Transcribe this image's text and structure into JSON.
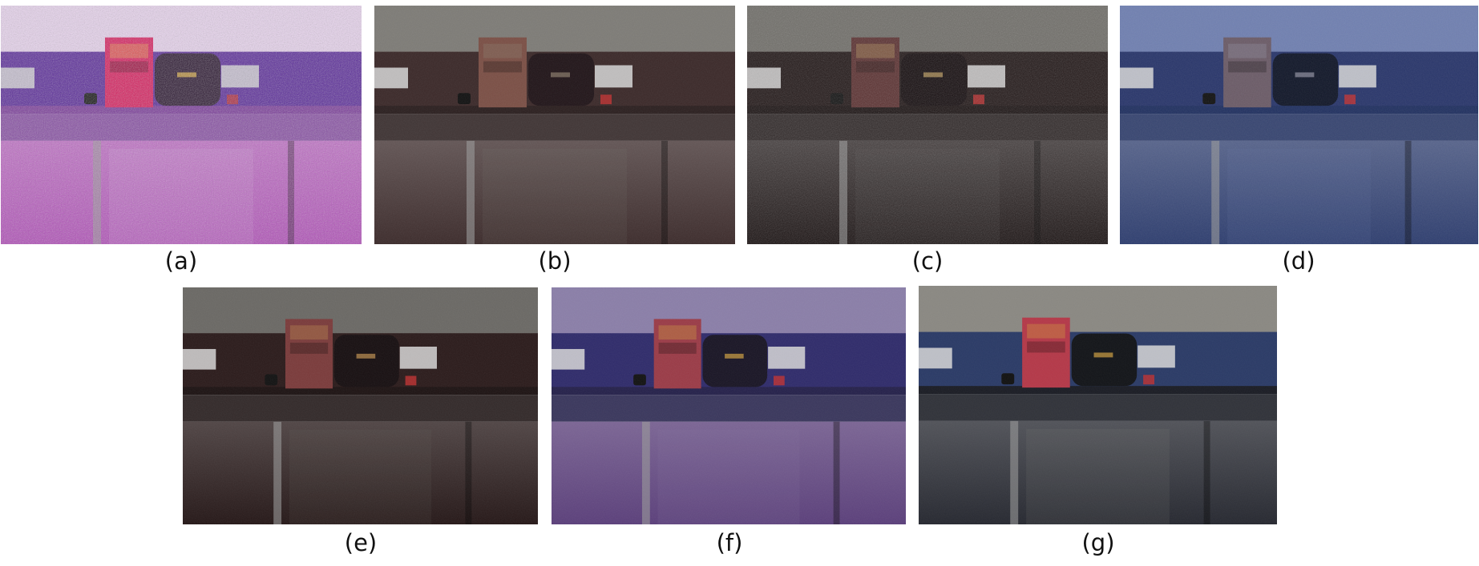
{
  "figure": {
    "panels": [
      {
        "caption": "(a)",
        "tint": {
          "wall": "#e8d3ee",
          "band": "#5a2a9a",
          "shelf": "#7a3a9a",
          "lower": "#b04ab8",
          "book": "#d81e5e",
          "bag": "#2a1630",
          "text": "#f0c04a",
          "noise": 0.55
        }
      },
      {
        "caption": "(b)",
        "tint": {
          "wall": "#7d7b76",
          "band": "#3a2828",
          "shelf": "#2a1e1e",
          "lower": "#3b2a2a",
          "book": "#7a4e44",
          "bag": "#201418",
          "text": "#8a7a6a",
          "noise": 0.12
        }
      },
      {
        "caption": "(c)",
        "tint": {
          "wall": "#6f6d68",
          "band": "#221818",
          "shelf": "#1a1212",
          "lower": "#181010",
          "book": "#5a3030",
          "bag": "#140c0e",
          "text": "#c0a060",
          "noise": 0.3
        }
      },
      {
        "caption": "(d)",
        "tint": {
          "wall": "#6f7fb0",
          "band": "#28356a",
          "shelf": "#203060",
          "lower": "#2c3c6e",
          "book": "#6a5a66",
          "bag": "#101628",
          "text": "#9090a0",
          "noise": 0.15
        }
      },
      {
        "caption": "(e)",
        "tint": {
          "wall": "#6a6864",
          "band": "#2a1a1a",
          "shelf": "#1c1212",
          "lower": "#241616",
          "book": "#7a3a3a",
          "bag": "#160e10",
          "text": "#c09050",
          "noise": 0.1
        }
      },
      {
        "caption": "(f)",
        "tint": {
          "wall": "#8a7ea8",
          "band": "#2e2a6a",
          "shelf": "#24204a",
          "lower": "#5a3e7a",
          "book": "#9a3a46",
          "bag": "#181424",
          "text": "#d0a040",
          "noise": 0.1
        }
      },
      {
        "caption": "(g)",
        "tint": {
          "wall": "#8a8882",
          "band": "#2a3a66",
          "shelf": "#1a1c24",
          "lower": "#262830",
          "book": "#b43848",
          "bag": "#121418",
          "text": "#d0a040",
          "noise": 0.08
        }
      }
    ]
  }
}
